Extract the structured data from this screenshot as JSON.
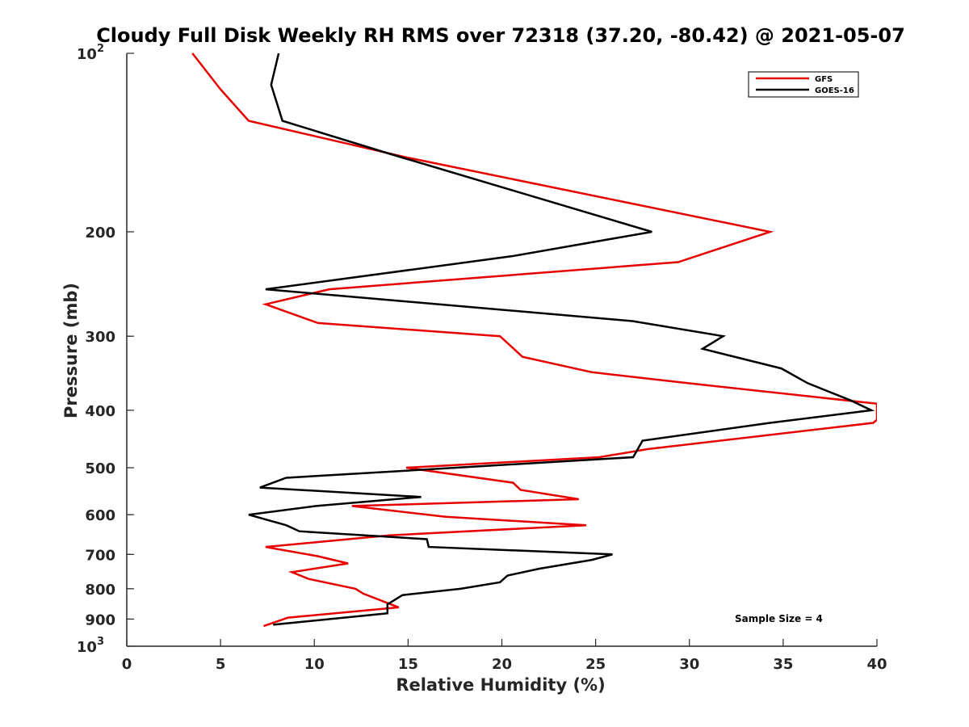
{
  "chart_data": {
    "type": "line",
    "title": "Cloudy Full Disk Weekly RH RMS over 72318 (37.20, -80.42) @ 2021-05-07",
    "xlabel": "Relative Humidity (%)",
    "ylabel": "Pressure (mb)",
    "xlim": [
      0,
      40
    ],
    "ylim": [
      100,
      1000
    ],
    "yscale": "log",
    "y_reversed": true,
    "grid": false,
    "legend_position": "top-right",
    "x_ticks": [
      "0",
      "5",
      "10",
      "15",
      "20",
      "25",
      "30",
      "35",
      "40"
    ],
    "y_ticks": [
      {
        "value": 100,
        "base": "10",
        "exp": "2"
      },
      {
        "value": 200,
        "label": "200"
      },
      {
        "value": 300,
        "label": "300"
      },
      {
        "value": 400,
        "label": "400"
      },
      {
        "value": 500,
        "label": "500"
      },
      {
        "value": 600,
        "label": "600"
      },
      {
        "value": 700,
        "label": "700"
      },
      {
        "value": 800,
        "label": "800"
      },
      {
        "value": 900,
        "label": "900"
      },
      {
        "value": 1000,
        "base": "10",
        "exp": "3"
      }
    ],
    "series": [
      {
        "name": "GFS",
        "color": "#e60000",
        "points": [
          [
            3.5,
            100
          ],
          [
            5.0,
            115
          ],
          [
            6.5,
            130
          ],
          [
            15.0,
            150
          ],
          [
            34.3,
            200
          ],
          [
            29.4,
            225
          ],
          [
            10.8,
            250
          ],
          [
            7.4,
            265
          ],
          [
            10.2,
            285
          ],
          [
            19.9,
            300
          ],
          [
            21.1,
            325
          ],
          [
            24.8,
            345
          ],
          [
            29.9,
            360
          ],
          [
            40.0,
            390
          ],
          [
            40.0,
            415
          ],
          [
            39.8,
            420
          ],
          [
            27.8,
            465
          ],
          [
            25.2,
            480
          ],
          [
            14.9,
            500
          ],
          [
            20.6,
            530
          ],
          [
            21.0,
            545
          ],
          [
            24.1,
            565
          ],
          [
            12.0,
            580
          ],
          [
            17.0,
            605
          ],
          [
            24.5,
            625
          ],
          [
            14.0,
            650
          ],
          [
            7.4,
            680
          ],
          [
            10.2,
            705
          ],
          [
            11.8,
            725
          ],
          [
            8.8,
            750
          ],
          [
            9.7,
            770
          ],
          [
            12.2,
            800
          ],
          [
            12.6,
            815
          ],
          [
            14.5,
            860
          ],
          [
            8.6,
            895
          ],
          [
            7.3,
            925
          ]
        ]
      },
      {
        "name": "GOES-16",
        "color": "#000000",
        "points": [
          [
            8.1,
            100
          ],
          [
            7.7,
            113
          ],
          [
            8.3,
            130
          ],
          [
            14.1,
            148
          ],
          [
            28.0,
            200
          ],
          [
            20.5,
            220
          ],
          [
            7.4,
            250
          ],
          [
            27.0,
            283
          ],
          [
            31.8,
            300
          ],
          [
            30.7,
            315
          ],
          [
            34.9,
            340
          ],
          [
            36.3,
            360
          ],
          [
            38.6,
            385
          ],
          [
            39.7,
            400
          ],
          [
            34.3,
            420
          ],
          [
            27.5,
            450
          ],
          [
            27.0,
            480
          ],
          [
            8.5,
            520
          ],
          [
            7.1,
            540
          ],
          [
            15.7,
            560
          ],
          [
            10.1,
            580
          ],
          [
            6.5,
            600
          ],
          [
            8.5,
            625
          ],
          [
            9.2,
            640
          ],
          [
            16.0,
            660
          ],
          [
            16.1,
            680
          ],
          [
            25.9,
            700
          ],
          [
            24.8,
            715
          ],
          [
            22.0,
            740
          ],
          [
            20.3,
            760
          ],
          [
            19.9,
            780
          ],
          [
            17.8,
            800
          ],
          [
            14.7,
            820
          ],
          [
            13.9,
            850
          ],
          [
            13.9,
            880
          ],
          [
            7.8,
            920
          ]
        ]
      }
    ],
    "annotation": "Sample Size = 4"
  }
}
